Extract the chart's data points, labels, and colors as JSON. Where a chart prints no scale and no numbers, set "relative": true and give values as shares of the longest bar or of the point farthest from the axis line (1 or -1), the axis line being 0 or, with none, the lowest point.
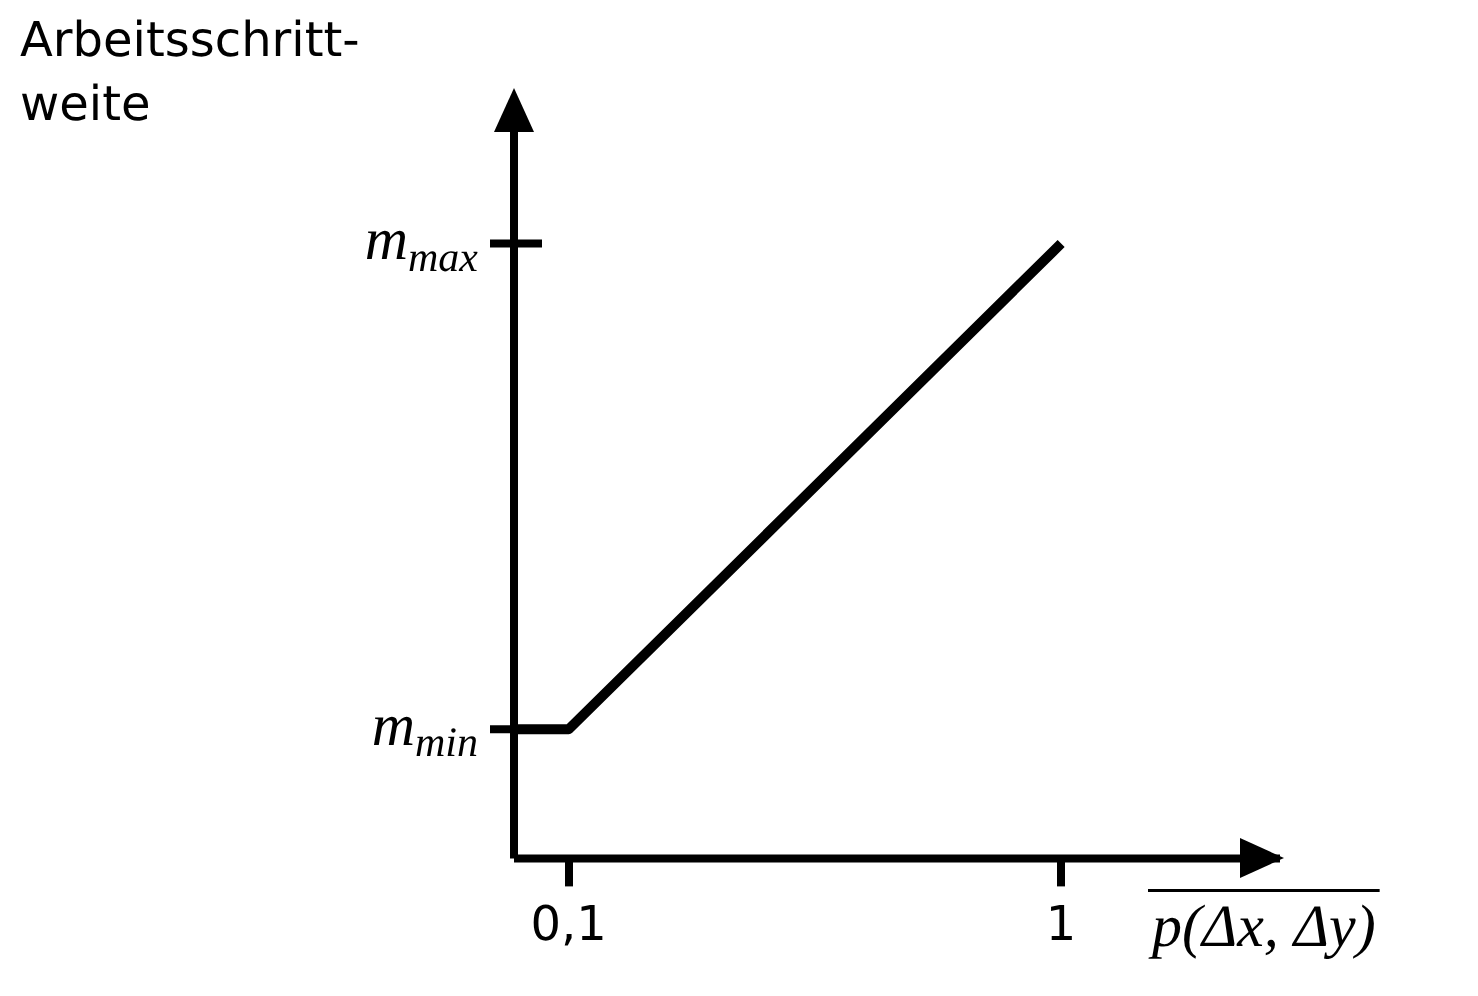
{
  "chart_data": {
    "type": "line",
    "xlabel": "p(Δx, Δy)",
    "ylabel": "Arbeitsschritt-\nweite",
    "x": [
      0,
      0.1,
      1
    ],
    "series": [
      {
        "color": "#000000",
        "values": [
          0.21,
          0.21,
          1
        ]
      }
    ],
    "xlim": [
      0,
      1.4
    ],
    "xticks": [
      {
        "value": 0.1,
        "label": "0,1"
      },
      1
    ],
    "relative": true,
    "annotations": [
      "m$_{min}$",
      "m$_{max}$"
    ],
    "grid": false,
    "legend": false,
    "marker": "none",
    "line_style": "solid"
  }
}
